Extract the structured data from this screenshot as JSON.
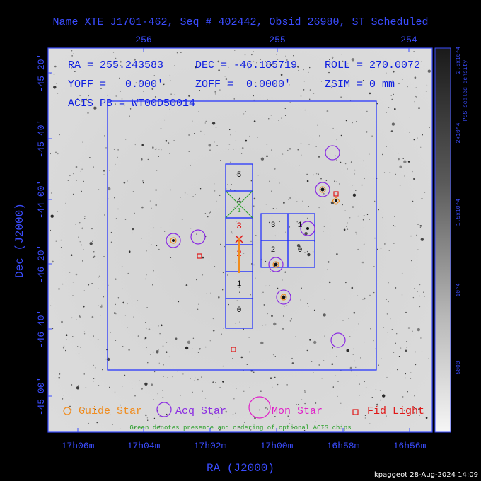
{
  "title": "Name XTE J1701-462, Seq # 402442, Obsid 26980, ST Scheduled",
  "info": {
    "ra": "RA = 255.243583",
    "dec": "DEC = -46.185719",
    "roll": "ROLL = 270.0072",
    "yoff": "YOFF =   0.000'",
    "zoff": "ZOFF =  0.0000'",
    "zsim": "ZSIM = 0 mm",
    "acis": "ACIS PB = WT00D50014"
  },
  "top_axis_ticks": [
    "256",
    "255",
    "254"
  ],
  "bottom_axis_ticks": [
    "17h06m",
    "17h04m",
    "17h02m",
    "17h00m",
    "16h58m",
    "16h56m"
  ],
  "left_axis_ticks": [
    "-45 20'",
    "-45 40'",
    "-44 00'",
    "-46 20'",
    "-46 40'",
    "-45 00'"
  ],
  "xlabel": "RA (J2000)",
  "ylabel": "Dec (J2000)",
  "colorbar": {
    "label": "PSS scaled density",
    "ticks": [
      "2.5x10^4",
      "2x10^4",
      "1.5x10^4",
      "10^4",
      "5000"
    ]
  },
  "chips_vertical": [
    "5",
    "4",
    "3",
    "2",
    "1",
    "0"
  ],
  "chips_square": [
    "3",
    "1",
    "2",
    "0"
  ],
  "legend": {
    "guide": "Guide Star",
    "acq": "Acq Star",
    "mon": "Mon Star",
    "fid": "Fid Light",
    "note": "Green denotes presence and ordering of optional ACIS chips"
  },
  "colors": {
    "blue": "#3a4cff",
    "orange": "#f08c1e",
    "purple": "#8a2be2",
    "magenta": "#e020c8",
    "red": "#e01818",
    "green": "#2aa02a"
  },
  "footer": "kpaggeot 28-Aug-2024 14:09"
}
